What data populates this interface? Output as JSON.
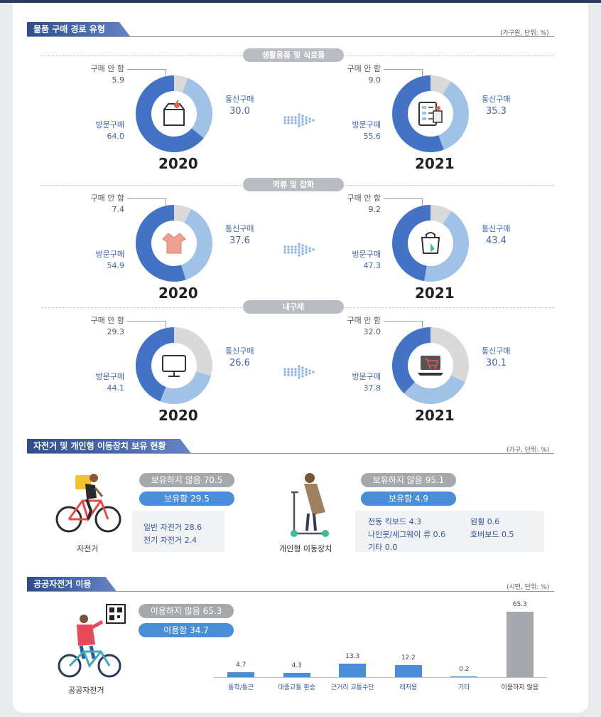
{
  "sections": {
    "purchase": {
      "title": "물품 구매 경로 유형",
      "unit": "(가구원, 단위: %)"
    },
    "mobility": {
      "title": "자전거 및 개인형 이동장치 보유 현황",
      "unit": "(가구, 단위: %)"
    },
    "public_bike": {
      "title": "공공자전거 이용",
      "unit": "(시민, 단위: %)"
    }
  },
  "labels": {
    "no_purchase": "구매 안 함",
    "online": "통신구매",
    "visit": "방문구매"
  },
  "chart_data": [
    {
      "type": "pie",
      "title": "생활용품 및 식료품",
      "years": [
        "2020",
        "2021"
      ],
      "series": [
        {
          "year": "2020",
          "icon": "grocery-bag-icon",
          "online": 30.0,
          "visit": 64.0,
          "none": 5.9,
          "online_text": "30.0",
          "visit_text": "64.0",
          "none_text": "5.9"
        },
        {
          "year": "2021",
          "icon": "online-grocery-icon",
          "online": 35.3,
          "visit": 55.6,
          "none": 9.0,
          "online_text": "35.3",
          "visit_text": "55.6",
          "none_text": "9.0"
        }
      ]
    },
    {
      "type": "pie",
      "title": "의류 및 잡화",
      "years": [
        "2020",
        "2021"
      ],
      "series": [
        {
          "year": "2020",
          "icon": "blouse-icon",
          "online": 37.6,
          "visit": 54.9,
          "none": 7.4,
          "online_text": "37.6",
          "visit_text": "54.9",
          "none_text": "7.4"
        },
        {
          "year": "2021",
          "icon": "shopping-bag-tap-icon",
          "online": 43.4,
          "visit": 47.3,
          "none": 9.2,
          "online_text": "43.4",
          "visit_text": "47.3",
          "none_text": "9.2"
        }
      ]
    },
    {
      "type": "pie",
      "title": "내구재",
      "years": [
        "2020",
        "2021"
      ],
      "series": [
        {
          "year": "2020",
          "icon": "monitor-icon",
          "online": 26.6,
          "visit": 44.1,
          "none": 29.3,
          "online_text": "26.6",
          "visit_text": "44.1",
          "none_text": "29.3"
        },
        {
          "year": "2021",
          "icon": "laptop-cart-icon",
          "online": 30.1,
          "visit": 37.8,
          "none": 32.0,
          "online_text": "30.1",
          "visit_text": "37.8",
          "none_text": "32.0"
        }
      ]
    },
    {
      "type": "bar",
      "categories": [
        "통학/통근",
        "대중교통 환승",
        "근거리 교통수단",
        "레저용",
        "기타",
        "이용하지 않음"
      ],
      "values": [
        4.7,
        4.3,
        13.3,
        12.2,
        0.2,
        65.3
      ],
      "value_labels": [
        "4.7",
        "4.3",
        "13.3",
        "12.2",
        "0.2",
        "65.3"
      ],
      "ylim": [
        0,
        65.3
      ],
      "colors": [
        "#4a8fd6",
        "#4a8fd6",
        "#4a8fd6",
        "#4a8fd6",
        "#4a8fd6",
        "#a5a8ad"
      ]
    }
  ],
  "mobility": {
    "bicycle": {
      "caption": "자전거",
      "not_owned": "보유하지 않음 70.5",
      "owned": "보유함 29.5",
      "details": [
        "일반 자전거  28.6",
        "전기 자전거  2.4"
      ]
    },
    "pm": {
      "caption": "개인형 이동장치",
      "not_owned": "보유하지 않음 95.1",
      "owned": "보유함 4.9",
      "details": [
        "전동 킥보드 4.3",
        "원휠 0.6",
        "나인봇/세그웨이 류 0.6",
        "호버보드 0.5",
        "기타 0.0"
      ]
    }
  },
  "public_bike": {
    "caption": "공공자전거",
    "not_used": "이용하지  않음 65.3",
    "used": "이용함 34.7"
  },
  "colors": {
    "online": "#9fc2e6",
    "visit": "#4472c4",
    "none": "#d9d9d9",
    "accent": "#2f55a4"
  }
}
